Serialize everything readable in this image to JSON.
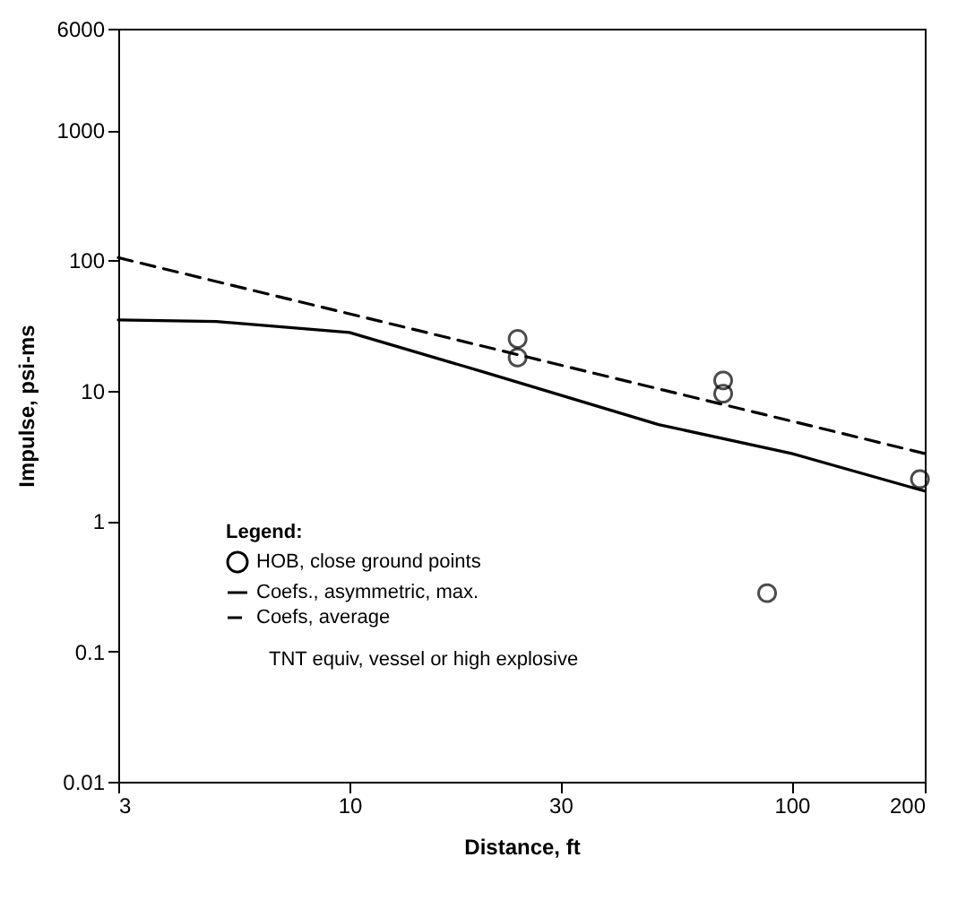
{
  "chart_data": {
    "type": "line",
    "xlabel": "Distance, ft",
    "ylabel": "Impulse, psi-ms",
    "legend_title": "Legend:",
    "log": "xy",
    "grid": false,
    "legend": "bottom left",
    "xlim": [
      3,
      200
    ],
    "xticks": [
      3,
      10,
      30,
      100,
      200
    ],
    "ylim": [
      0.01,
      6000
    ],
    "yticks": [
      0.01,
      0.1,
      1,
      10,
      100,
      1000,
      6000
    ],
    "series": [
      {
        "name": "HOB, close ground points",
        "type": "scatter",
        "marker": "circle",
        "color": "#000000",
        "x": [
          24,
          24,
          70,
          70,
          88,
          195
        ],
        "values": [
          25,
          18,
          12,
          9.5,
          0.28,
          2.1
        ]
      },
      {
        "name": "Coefs., asymmetric, max.",
        "line_style": "solid",
        "color": "#000000",
        "x": [
          3,
          5,
          10,
          20,
          50,
          100,
          200
        ],
        "values": [
          35,
          34,
          28,
          14,
          5.5,
          3.3,
          1.7
        ]
      },
      {
        "name": "Coefs, average",
        "line_style": "dashed",
        "color": "#000000",
        "x": [
          3,
          200
        ],
        "values": [
          105,
          3.3
        ]
      }
    ],
    "annotations": [
      "TNT equiv, vessel or high explosive"
    ]
  }
}
